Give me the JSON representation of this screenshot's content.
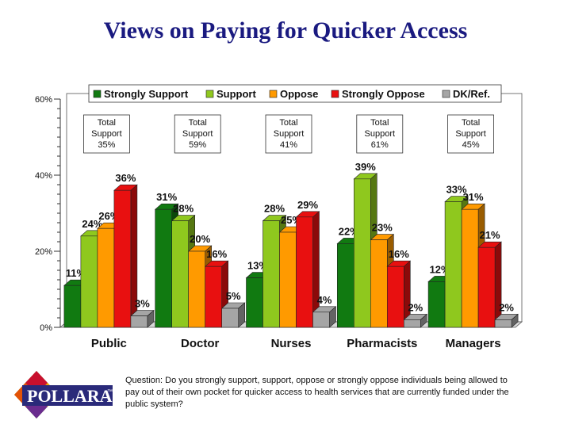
{
  "title": "Views on Paying for Quicker Access",
  "colors": {
    "strongly_support": "#117a11",
    "support": "#8fc81e",
    "oppose": "#ff9a00",
    "strongly_oppose": "#e81010",
    "dk": "#a5a5a5"
  },
  "chart_data": {
    "type": "bar",
    "categories": [
      "Public",
      "Doctor",
      "Nurses",
      "Pharmacists",
      "Managers"
    ],
    "series": [
      {
        "name": "Strongly Support",
        "color_key": "strongly_support",
        "values": [
          11,
          31,
          13,
          22,
          12
        ]
      },
      {
        "name": "Support",
        "color_key": "support",
        "values": [
          24,
          28,
          28,
          39,
          33
        ]
      },
      {
        "name": "Oppose",
        "color_key": "oppose",
        "values": [
          26,
          20,
          25,
          23,
          31
        ]
      },
      {
        "name": "Strongly Oppose",
        "color_key": "strongly_oppose",
        "values": [
          36,
          16,
          29,
          16,
          21
        ]
      },
      {
        "name": "DK/Ref.",
        "color_key": "dk",
        "values": [
          3,
          5,
          4,
          2,
          2
        ]
      }
    ],
    "ylim": [
      0,
      60
    ],
    "yticks": [
      0,
      20,
      40,
      60
    ],
    "ytick_labels": [
      "0%",
      "20%",
      "40%",
      "60%"
    ],
    "value_suffix": "%",
    "legend_position": "top",
    "total_support": {
      "label": "Total Support",
      "values": [
        "35%",
        "59%",
        "41%",
        "61%",
        "45%"
      ]
    }
  },
  "question": {
    "label": "Question:",
    "text": "Do you strongly support, support, oppose or strongly oppose individuals being allowed to pay out of their own pocket for quicker access to health services that are currently funded under the public system?"
  },
  "logo": {
    "text": "POLLARA",
    "trademark": "™"
  }
}
